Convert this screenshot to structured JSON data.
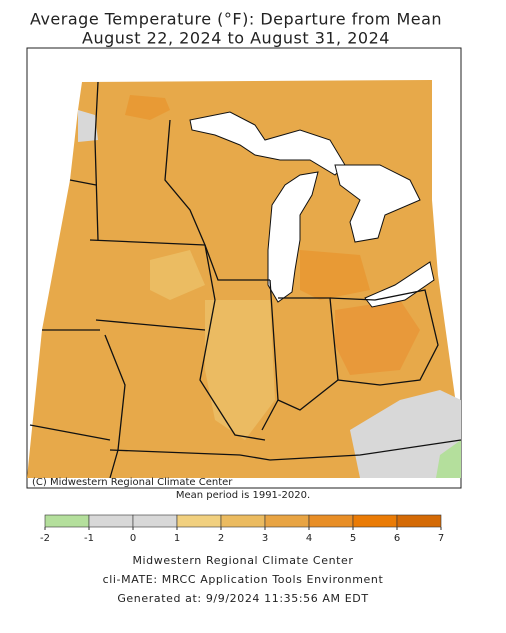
{
  "title": "Average Temperature (°F): Departure from Mean",
  "subtitle": "August 22, 2024 to August 31, 2024",
  "map": {
    "copyright": "(C) Midwestern Regional Climate Center",
    "note": "Mean period is 1991-2020."
  },
  "legend": {
    "ticks": [
      -2,
      -1,
      0,
      1,
      2,
      3,
      4,
      5,
      6,
      7
    ],
    "colors": [
      "#b4df9c",
      "#d8d8d8",
      "#d8d8d8",
      "#f1d07f",
      "#ebbb60",
      "#e8a443",
      "#e88e26",
      "#ea7b05",
      "#d46a05"
    ]
  },
  "footer": [
    "Midwestern Regional Climate Center",
    "cli-MATE: MRCC Application Tools Environment",
    "Generated at: 9/9/2024 11:35:56 AM EDT"
  ]
}
